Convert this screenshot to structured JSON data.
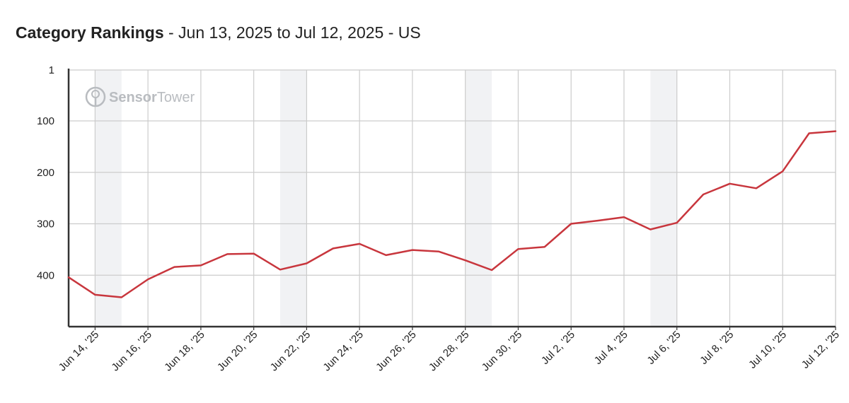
{
  "header": {
    "title": "Category Rankings",
    "subtitle": " - Jun 13, 2025 to Jul 12, 2025 - US"
  },
  "watermark": {
    "brand_bold": "Sensor",
    "brand_light": "Tower",
    "icon": "sensor-tower-logo-icon"
  },
  "colors": {
    "line": "#c8363d",
    "grid": "#cccccc",
    "weekend_band": "#f1f2f4",
    "axis": "#333333",
    "watermark": "#b9bcc0"
  },
  "chart_data": {
    "type": "line",
    "title": "Category Rankings",
    "subtitle": "Jun 13, 2025 to Jul 12, 2025 - US",
    "y_inverted": true,
    "ylim": [
      1,
      500
    ],
    "y_ticks": [
      1,
      100,
      200,
      300,
      400
    ],
    "x_ticks": [
      "Jun 14, '25",
      "Jun 16, '25",
      "Jun 18, '25",
      "Jun 20, '25",
      "Jun 22, '25",
      "Jun 24, '25",
      "Jun 26, '25",
      "Jun 28, '25",
      "Jun 30, '25",
      "Jul 2, '25",
      "Jul 4, '25",
      "Jul 6, '25",
      "Jul 8, '25",
      "Jul 10, '25",
      "Jul 12, '25"
    ],
    "x": [
      "Jun 13, '25",
      "Jun 14, '25",
      "Jun 15, '25",
      "Jun 16, '25",
      "Jun 17, '25",
      "Jun 18, '25",
      "Jun 19, '25",
      "Jun 20, '25",
      "Jun 21, '25",
      "Jun 22, '25",
      "Jun 23, '25",
      "Jun 24, '25",
      "Jun 25, '25",
      "Jun 26, '25",
      "Jun 27, '25",
      "Jun 28, '25",
      "Jun 29, '25",
      "Jun 30, '25",
      "Jul 1, '25",
      "Jul 2, '25",
      "Jul 3, '25",
      "Jul 4, '25",
      "Jul 5, '25",
      "Jul 6, '25",
      "Jul 7, '25",
      "Jul 8, '25",
      "Jul 9, '25",
      "Jul 10, '25",
      "Jul 11, '25",
      "Jul 12, '25"
    ],
    "series": [
      {
        "values": [
          404,
          438,
          443,
          408,
          384,
          381,
          359,
          358,
          389,
          377,
          348,
          339,
          361,
          351,
          354,
          371,
          390,
          349,
          345,
          300,
          294,
          287,
          311,
          298,
          243,
          222,
          231,
          198,
          124,
          120
        ]
      }
    ],
    "weekend_bands": [
      [
        "Jun 14, '25",
        "Jun 15, '25"
      ],
      [
        "Jun 21, '25",
        "Jun 22, '25"
      ],
      [
        "Jun 28, '25",
        "Jun 29, '25"
      ],
      [
        "Jul 5, '25",
        "Jul 6, '25"
      ],
      [
        "Jul 12, '25",
        "Jul 12, '25"
      ]
    ],
    "grid": true,
    "legend": "none"
  }
}
